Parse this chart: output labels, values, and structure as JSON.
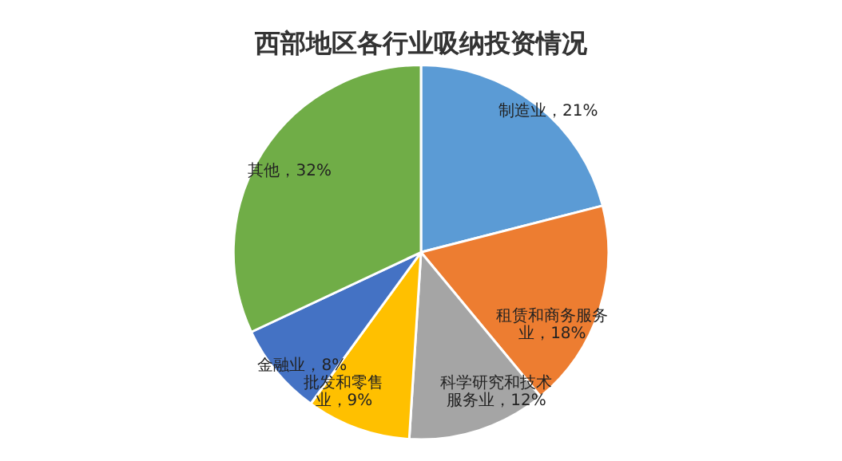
{
  "chart_data": {
    "type": "pie",
    "title": "西部地区各行业吸纳投资情况",
    "categories": [
      "制造业",
      "租赁和商务服务业",
      "科学研究和技术服务业",
      "批发和零售业",
      "金融业",
      "其他"
    ],
    "values": [
      21,
      18,
      12,
      9,
      8,
      32
    ],
    "value_labels": [
      "21%",
      "18%",
      "12%",
      "9%",
      "8%",
      "32%"
    ],
    "colors": [
      "#5b9bd5",
      "#ed7d31",
      "#a5a5a5",
      "#ffc000",
      "#4472c4",
      "#70ad47"
    ],
    "legend": false
  }
}
